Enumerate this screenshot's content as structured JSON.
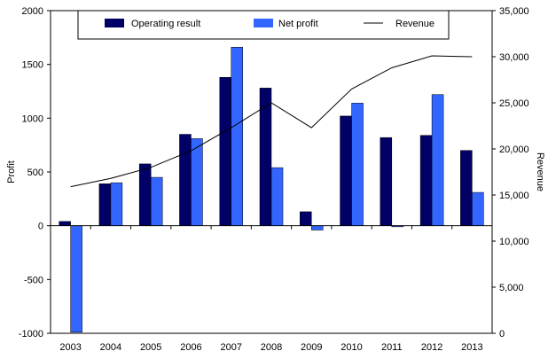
{
  "chart_data": {
    "type": "bar",
    "categories": [
      "2003",
      "2004",
      "2005",
      "2006",
      "2007",
      "2008",
      "2009",
      "2010",
      "2011",
      "2012",
      "2013"
    ],
    "series": [
      {
        "name": "Operating result",
        "type": "bar",
        "axis": "left",
        "color": "#000066",
        "values": [
          40,
          390,
          575,
          850,
          1380,
          1280,
          130,
          1020,
          820,
          840,
          700
        ]
      },
      {
        "name": "Net profit",
        "type": "bar",
        "axis": "left",
        "color": "#3366FF",
        "values": [
          -990,
          400,
          450,
          810,
          1660,
          540,
          -40,
          1140,
          -10,
          1220,
          310
        ]
      },
      {
        "name": "Revenue",
        "type": "line",
        "axis": "right",
        "color": "#000000",
        "values": [
          15900,
          16800,
          18000,
          19800,
          22300,
          25000,
          22300,
          26500,
          28800,
          30100,
          30000
        ]
      }
    ],
    "ylabel": "Profit",
    "y2label": "Revenue",
    "ylim": [
      -1000,
      2000
    ],
    "y2lim": [
      0,
      35000
    ],
    "yticks": [
      "2000",
      "1500",
      "1000",
      "500",
      "0",
      "-500",
      "-1000"
    ],
    "y2ticks": [
      "35,000",
      "30,000",
      "25,000",
      "20,000",
      "15,000",
      "10,000",
      "5,000",
      "0"
    ],
    "legend_position": "top",
    "grid": false
  }
}
